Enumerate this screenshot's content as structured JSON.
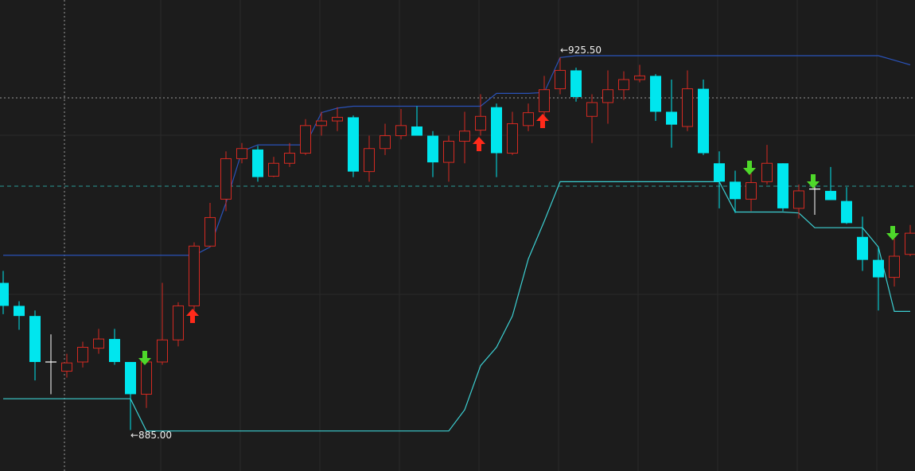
{
  "chart_data": {
    "type": "candlestick",
    "ylim": [
      880.55,
      931.75
    ],
    "up_color": "#d42a22",
    "down_color": "#00e6ee",
    "doji_color": "#ffffff",
    "open": [
      901.0,
      898.5,
      897.4,
      892.4,
      891.4,
      892.4,
      893.9,
      894.9,
      892.4,
      888.9,
      892.4,
      894.8,
      898.5,
      905.0,
      910.1,
      914.5,
      915.5,
      912.6,
      914.0,
      915.1,
      918.1,
      918.6,
      919.0,
      913.1,
      915.6,
      917.0,
      918.0,
      917.0,
      914.1,
      916.4,
      917.6,
      920.1,
      915.1,
      918.1,
      919.6,
      922.1,
      924.1,
      919.1,
      920.6,
      922.0,
      923.1,
      923.5,
      919.6,
      918.0,
      922.1,
      914.0,
      912.0,
      910.1,
      912.0,
      914.0,
      909.1,
      911.2,
      911.0,
      909.9,
      906.0,
      903.5,
      901.6,
      904.1
    ],
    "high": [
      902.3,
      899.0,
      898.0,
      895.4,
      893.3,
      894.6,
      896.0,
      896.0,
      892.4,
      893.0,
      901.0,
      898.9,
      905.4,
      909.7,
      915.3,
      916.2,
      915.9,
      914.7,
      916.2,
      918.8,
      919.6,
      920.1,
      919.2,
      917.0,
      918.3,
      919.9,
      920.2,
      917.5,
      917.0,
      919.6,
      921.5,
      920.5,
      919.6,
      920.5,
      923.5,
      925.5,
      924.4,
      921.5,
      924.1,
      924.0,
      924.7,
      923.7,
      923.1,
      924.1,
      923.1,
      915.3,
      913.2,
      912.9,
      916.0,
      914.0,
      911.7,
      912.5,
      913.6,
      911.4,
      908.2,
      904.9,
      905.8,
      907.3
    ],
    "low": [
      897.6,
      895.9,
      890.4,
      888.9,
      890.7,
      891.8,
      893.3,
      892.1,
      885.0,
      887.4,
      892.1,
      894.1,
      898.0,
      904.9,
      908.8,
      914.0,
      912.0,
      912.5,
      913.6,
      914.9,
      917.0,
      917.5,
      912.5,
      912.0,
      914.9,
      916.6,
      917.0,
      912.5,
      912.0,
      914.0,
      917.0,
      912.5,
      914.9,
      917.5,
      917.9,
      921.5,
      920.7,
      916.2,
      918.3,
      920.9,
      922.8,
      918.6,
      915.7,
      917.5,
      914.9,
      909.1,
      908.6,
      908.8,
      911.7,
      908.8,
      908.0,
      908.4,
      910.0,
      907.4,
      902.3,
      898.0,
      900.6,
      903.9
    ],
    "close": [
      898.5,
      897.4,
      892.4,
      892.4,
      892.3,
      894.0,
      894.9,
      892.4,
      888.9,
      892.4,
      894.8,
      898.5,
      905.0,
      908.1,
      914.5,
      915.6,
      912.5,
      914.0,
      915.1,
      918.1,
      918.6,
      919.0,
      913.1,
      915.6,
      917.0,
      918.1,
      917.0,
      914.1,
      916.4,
      917.5,
      919.1,
      915.1,
      918.3,
      919.5,
      922.0,
      924.1,
      921.2,
      920.6,
      922.0,
      923.1,
      923.5,
      919.6,
      918.2,
      922.1,
      915.1,
      912.0,
      910.1,
      911.9,
      914.0,
      909.1,
      911.0,
      911.2,
      910.0,
      907.5,
      903.5,
      901.6,
      903.9,
      906.4
    ],
    "series": [
      {
        "color": "#2a52b8",
        "values": [
          904.0,
          904.0,
          904.0,
          904.0,
          904.0,
          904.0,
          904.0,
          904.0,
          904.0,
          904.0,
          904.0,
          904.0,
          904.0,
          904.9,
          909.7,
          915.3,
          916.0,
          916.0,
          916.0,
          916.0,
          919.5,
          920.0,
          920.2,
          920.2,
          920.2,
          920.2,
          920.2,
          920.2,
          920.2,
          920.2,
          920.2,
          921.6,
          921.6,
          921.6,
          921.7,
          925.5,
          925.7,
          925.7,
          925.7,
          925.7,
          925.7,
          925.7,
          925.7,
          925.7,
          925.7,
          925.7,
          925.7,
          925.7,
          925.7,
          925.7,
          925.7,
          925.7,
          925.7,
          925.7,
          925.7,
          925.7,
          925.2,
          924.7
        ]
      },
      {
        "color": "#3ccfd2",
        "values": [
          888.4,
          888.4,
          888.4,
          888.4,
          888.4,
          888.4,
          888.4,
          888.4,
          888.4,
          884.9,
          884.9,
          884.9,
          884.9,
          884.9,
          884.9,
          884.9,
          884.9,
          884.9,
          884.9,
          884.9,
          884.9,
          884.9,
          884.9,
          884.9,
          884.9,
          884.9,
          884.9,
          884.9,
          884.9,
          887.2,
          892.0,
          894.0,
          897.4,
          903.6,
          907.7,
          912.0,
          912.0,
          912.0,
          912.0,
          912.0,
          912.0,
          912.0,
          912.0,
          912.0,
          912.0,
          912.0,
          908.7,
          908.7,
          908.7,
          908.7,
          908.6,
          907.0,
          907.0,
          907.0,
          907.0,
          904.9,
          897.9,
          897.9
        ]
      }
    ],
    "annotations": [
      {
        "text": "←925.50"
      },
      {
        "text": "←885.00"
      }
    ]
  }
}
